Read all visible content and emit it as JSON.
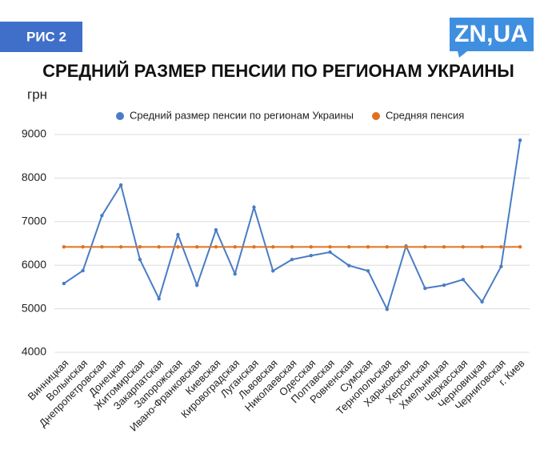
{
  "chart_data": {
    "type": "line",
    "badge": "РИС 2",
    "logo": "ZN,UA",
    "title": "СРЕДНИЙ РАЗМЕР ПЕНСИИ ПО РЕГИОНАМ УКРАИНЫ",
    "y_label": "грн",
    "categories": [
      "Винницкая",
      "Волынская",
      "Днепропетровская",
      "Донецкая",
      "Житомирская",
      "Закарпатская",
      "Запорожская",
      "Ивано-Франковская",
      "Киевская",
      "Кировоградская",
      "Луганская",
      "Львовская",
      "Николаевская",
      "Одесская",
      "Полтавская",
      "Ровненская",
      "Сумская",
      "Тернопольская",
      "Харьковская",
      "Херсонская",
      "Хмельницкая",
      "Черкасская",
      "Черновицкая",
      "Черниговская",
      "г. Киев"
    ],
    "series": [
      {
        "name": "Средний размер пенсии по регионам Украины",
        "color": "#4a7cc4",
        "markers": true,
        "values": [
          5580,
          5875,
          7140,
          7840,
          6130,
          5230,
          6700,
          5540,
          6810,
          5800,
          7330,
          5870,
          6130,
          6220,
          6300,
          5990,
          5870,
          4990,
          6440,
          5470,
          5540,
          5670,
          5160,
          5970,
          8870
        ]
      },
      {
        "name": "Средняя пенсия",
        "color": "#e0701e",
        "markers": true,
        "values": [
          6420,
          6420,
          6420,
          6420,
          6420,
          6420,
          6420,
          6420,
          6420,
          6420,
          6420,
          6420,
          6420,
          6420,
          6420,
          6420,
          6420,
          6420,
          6420,
          6420,
          6420,
          6420,
          6420,
          6420,
          6420
        ]
      }
    ],
    "ylim": [
      4000,
      9000
    ],
    "yticks": [
      4000,
      5000,
      6000,
      7000,
      8000,
      9000
    ],
    "grid": true,
    "legend": "top"
  }
}
